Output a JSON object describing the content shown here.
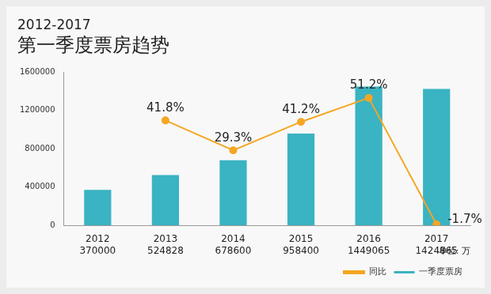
{
  "chart_data": {
    "type": "bar",
    "title": "2012-2017",
    "subtitle": "第一季度票房趋势",
    "categories": [
      "2012",
      "2013",
      "2014",
      "2015",
      "2016",
      "2017"
    ],
    "series": [
      {
        "name": "同比",
        "type": "line",
        "color": "#f5a623",
        "marker": "circle",
        "axis": "y2",
        "values": [
          null,
          41.8,
          29.3,
          41.2,
          51.2,
          -1.7
        ],
        "value_labels": [
          null,
          "41.8%",
          "29.3%",
          "41.2%",
          "51.2%",
          "-1.7%"
        ],
        "data_labels": true
      },
      {
        "name": "一季度票房",
        "type": "bar",
        "color": "#3ab3c2",
        "values": [
          370000,
          524828,
          678600,
          958400,
          1449065,
          1424865
        ],
        "data_labels": true
      }
    ],
    "ylim": [
      0,
      1600000
    ],
    "yticks": [
      0,
      400000,
      800000,
      1200000,
      1600000
    ],
    "y2lim": [
      -2,
      62
    ],
    "grid": false,
    "legend": "bottom right",
    "unit": "单位: 万"
  }
}
